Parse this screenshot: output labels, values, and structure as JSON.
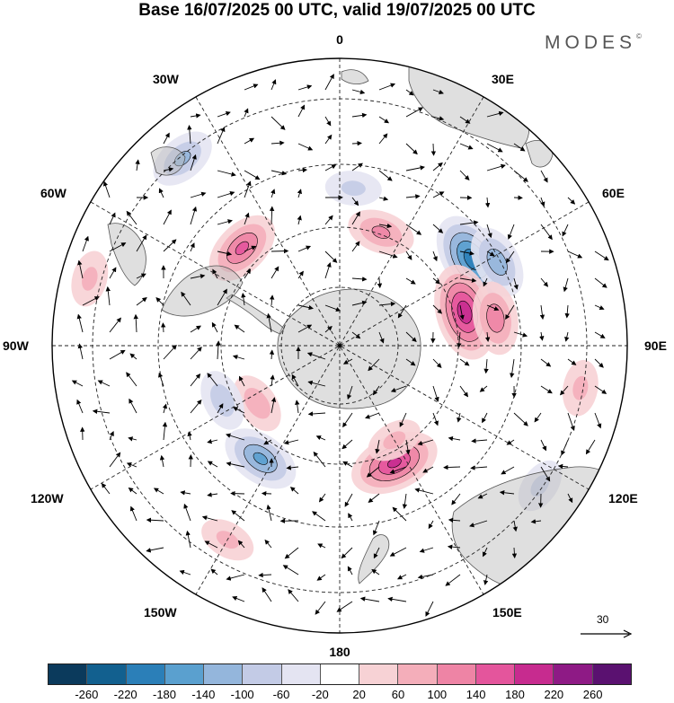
{
  "title": "Base 16/07/2025 00 UTC, valid 19/07/2025 00 UTC",
  "brand": "MODES",
  "brand_mark": "©",
  "longitude_labels": {
    "north": "0",
    "south": "180",
    "west90": "90W",
    "east90": "90E",
    "w30": "30W",
    "e30": "30E",
    "w60": "60W",
    "e60": "60E",
    "w120": "120W",
    "e120": "120E",
    "w150": "150W",
    "e150": "150E"
  },
  "vector_reference": {
    "label": "30"
  },
  "colorbar": {
    "colors": [
      "#0b3a5c",
      "#12608f",
      "#2b7fb8",
      "#5aa0cf",
      "#94b6dc",
      "#c3cbe6",
      "#e4e4f2",
      "#ffffff",
      "#f7d2d5",
      "#f4aeba",
      "#ee84a5",
      "#e4559c",
      "#c72b8f",
      "#8e1a85",
      "#5a1170"
    ],
    "tick_labels": [
      "-260",
      "-220",
      "-180",
      "-140",
      "-100",
      "-60",
      "-20",
      "20",
      "60",
      "100",
      "140",
      "180",
      "220",
      "260"
    ]
  },
  "map": {
    "projection": "south polar stereographic",
    "anomalies": [
      {
        "lon": 57,
        "r": 0.55,
        "value": -200
      },
      {
        "lon": 62,
        "r": 0.62,
        "value": -120
      },
      {
        "lon": 20,
        "r": 0.42,
        "value": 100
      },
      {
        "lon": 75,
        "r": 0.45,
        "value": 200
      },
      {
        "lon": 80,
        "r": 0.55,
        "value": 120
      },
      {
        "lon": 155,
        "r": 0.45,
        "value": 180
      },
      {
        "lon": 150,
        "r": 0.38,
        "value": 60
      },
      {
        "lon": -145,
        "r": 0.48,
        "value": -140
      },
      {
        "lon": -45,
        "r": 0.48,
        "value": 140
      },
      {
        "lon": -40,
        "r": 0.85,
        "value": -100
      },
      {
        "lon": -125,
        "r": 0.35,
        "value": 80
      },
      {
        "lon": -115,
        "r": 0.45,
        "value": -80
      },
      {
        "lon": 100,
        "r": 0.85,
        "value": 60
      },
      {
        "lon": 125,
        "r": 0.85,
        "value": -60
      },
      {
        "lon": -75,
        "r": 0.9,
        "value": 60
      },
      {
        "lon": 5,
        "r": 0.55,
        "value": -60
      },
      {
        "lon": -150,
        "r": 0.78,
        "value": 60
      }
    ]
  }
}
